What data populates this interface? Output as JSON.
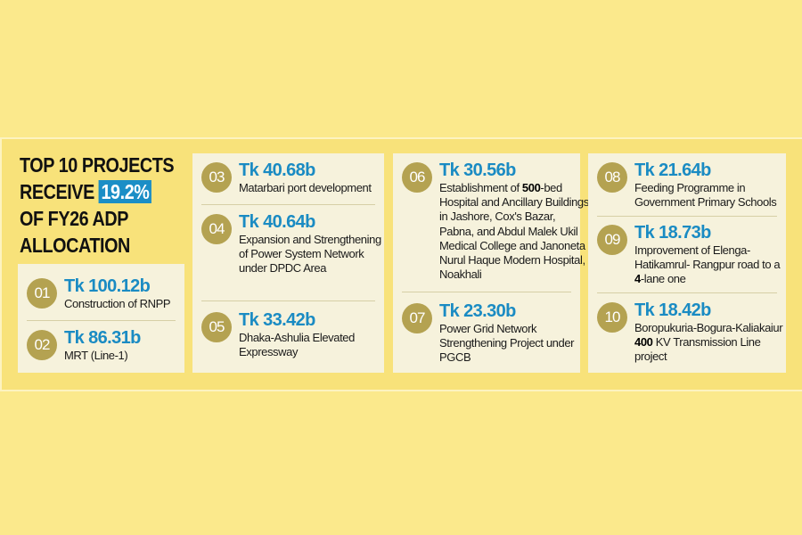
{
  "title": {
    "line1": "TOP 10 PROJECTS",
    "line2_pre": "RECEIVE",
    "highlight": "19.2%",
    "line3": "OF FY26 ADP",
    "line4": "ALLOCATION"
  },
  "colors": {
    "background": "#fbe98c",
    "card": "#f6f2dc",
    "accent": "#1a8bc3",
    "badge": "#b4a251"
  },
  "projects": [
    {
      "rank": "01",
      "amount": "Tk 100.12b",
      "desc_pre": "Construction of RNPP",
      "desc_bold": "",
      "desc_post": ""
    },
    {
      "rank": "02",
      "amount": "Tk 86.31b",
      "desc_pre": "MRT (Line-1)",
      "desc_bold": "",
      "desc_post": ""
    },
    {
      "rank": "03",
      "amount": "Tk 40.68b",
      "desc_pre": "Matarbari port development",
      "desc_bold": "",
      "desc_post": ""
    },
    {
      "rank": "04",
      "amount": "Tk 40.64b",
      "desc_pre": "Expansion and Strengthening of Power System Network under DPDC Area",
      "desc_bold": "",
      "desc_post": ""
    },
    {
      "rank": "05",
      "amount": "Tk 33.42b",
      "desc_pre": "Dhaka-Ashulia Elevated Expressway",
      "desc_bold": "",
      "desc_post": ""
    },
    {
      "rank": "06",
      "amount": "Tk 30.56b",
      "desc_pre": "Establishment of ",
      "desc_bold": "500",
      "desc_post": "-bed Hospital and Ancillary Buildings in Jashore, Cox's Bazar, Pabna, and Abdul Malek Ukil Medical College and Janoneta Nurul Haque Modern Hospital, Noakhali"
    },
    {
      "rank": "07",
      "amount": "Tk 23.30b",
      "desc_pre": "Power Grid Network Strengthening Project under PGCB",
      "desc_bold": "",
      "desc_post": ""
    },
    {
      "rank": "08",
      "amount": "Tk 21.64b",
      "desc_pre": "Feeding Programme in Government Primary Schools",
      "desc_bold": "",
      "desc_post": ""
    },
    {
      "rank": "09",
      "amount": "Tk 18.73b",
      "desc_pre": "Improvement of Elenga-Hatikamrul- Rangpur road to a ",
      "desc_bold": "4",
      "desc_post": "-lane one"
    },
    {
      "rank": "10",
      "amount": "Tk 18.42b",
      "desc_pre": "Boropukuria-Bogura-Kaliakaiur ",
      "desc_bold": "400",
      "desc_post": " KV Transmission Line project"
    }
  ]
}
